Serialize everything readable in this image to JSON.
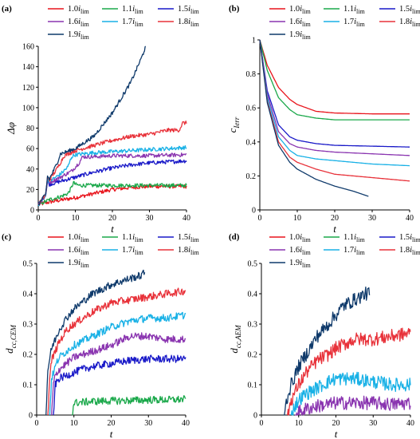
{
  "colors": {
    "s10": "#e8141c",
    "s11": "#1aa84a",
    "s15": "#1919c8",
    "s16": "#8a35b0",
    "s17": "#19b1e6",
    "s18": "#e8323a",
    "s19": "#0f3a6b"
  },
  "chart_data": [
    {
      "panel_label": "(a)",
      "type": "line",
      "xlabel": "t",
      "ylabel": "Δφ",
      "xlim": [
        0,
        40
      ],
      "ylim": [
        0,
        160
      ],
      "xticks": [
        0,
        10,
        20,
        30,
        40
      ],
      "yticks": [
        0,
        20,
        40,
        60,
        80,
        100,
        120,
        140,
        160
      ],
      "legend": [
        "1.0i_lim",
        "1.1i_lim",
        "1.5i_lim",
        "1.6i_lim",
        "1.7i_lim",
        "1.8i_lim",
        "1.9i_lim"
      ],
      "grid": false,
      "series": [
        {
          "name": "1.0i_lim",
          "color_key": "s10",
          "x": [
            0,
            2,
            5,
            10,
            15,
            20,
            25,
            30,
            35,
            40
          ],
          "y": [
            5,
            7,
            9,
            12,
            16,
            20,
            22,
            23,
            23,
            23
          ]
        },
        {
          "name": "1.1i_lim",
          "color_key": "s11",
          "x": [
            0,
            3,
            6,
            8,
            9,
            9.5,
            10,
            11,
            14,
            20,
            30,
            40
          ],
          "y": [
            5,
            10,
            13,
            16,
            22,
            27,
            25,
            24,
            24,
            24,
            24,
            24
          ]
        },
        {
          "name": "1.5i_lim",
          "color_key": "s15",
          "x": [
            0,
            1,
            2,
            2.5,
            3,
            5,
            10,
            15,
            20,
            25,
            30,
            35,
            40
          ],
          "y": [
            5,
            10,
            15,
            28,
            25,
            27,
            32,
            37,
            41,
            44,
            46,
            47,
            48
          ]
        },
        {
          "name": "1.6i_lim",
          "color_key": "s16",
          "x": [
            0,
            1,
            2,
            2.5,
            3,
            6,
            9,
            11,
            12,
            15,
            20,
            30,
            40
          ],
          "y": [
            5,
            10,
            15,
            30,
            27,
            32,
            38,
            46,
            52,
            52,
            53,
            53,
            54
          ]
        },
        {
          "name": "1.7i_lim",
          "color_key": "s17",
          "x": [
            0,
            1,
            2,
            2.5,
            3,
            6,
            8,
            9,
            10,
            15,
            20,
            30,
            40
          ],
          "y": [
            5,
            10,
            15,
            31,
            28,
            35,
            42,
            52,
            54,
            56,
            57,
            59,
            61
          ]
        },
        {
          "name": "1.8i_lim",
          "color_key": "s18",
          "x": [
            0,
            1,
            2,
            2.5,
            3,
            5,
            7,
            10,
            15,
            20,
            25,
            30,
            35,
            38,
            39,
            40
          ],
          "y": [
            5,
            10,
            15,
            32,
            29,
            40,
            53,
            58,
            63,
            68,
            72,
            74,
            78,
            78,
            85,
            85
          ]
        },
        {
          "name": "1.9i_lim",
          "color_key": "s19",
          "x": [
            0,
            1,
            2,
            2.5,
            3,
            5,
            6,
            7,
            10,
            15,
            20,
            25,
            28,
            29
          ],
          "y": [
            5,
            10,
            15,
            33,
            30,
            45,
            55,
            56,
            60,
            72,
            95,
            125,
            150,
            160
          ]
        }
      ]
    },
    {
      "panel_label": "(b)",
      "type": "line",
      "xlabel": "t",
      "ylabel": "c_Ierr",
      "xlim": [
        0,
        40
      ],
      "ylim": [
        0,
        1
      ],
      "xticks": [
        0,
        10,
        20,
        30,
        40
      ],
      "yticks": [
        0,
        0.2,
        0.4,
        0.6,
        0.8,
        1
      ],
      "legend": [
        "1.0i_lim",
        "1.1i_lim",
        "1.5i_lim",
        "1.6i_lim",
        "1.7i_lim",
        "1.8i_lim",
        "1.9i_lim"
      ],
      "grid": false,
      "series": [
        {
          "name": "1.0i_lim",
          "color_key": "s10",
          "x": [
            0,
            2,
            5,
            8,
            10,
            15,
            20,
            30,
            40
          ],
          "y": [
            1,
            0.85,
            0.72,
            0.65,
            0.62,
            0.58,
            0.57,
            0.565,
            0.565
          ]
        },
        {
          "name": "1.1i_lim",
          "color_key": "s11",
          "x": [
            0,
            2,
            5,
            8,
            10,
            15,
            20,
            30,
            40
          ],
          "y": [
            1,
            0.82,
            0.66,
            0.59,
            0.56,
            0.54,
            0.53,
            0.53,
            0.53
          ]
        },
        {
          "name": "1.5i_lim",
          "color_key": "s15",
          "x": [
            0,
            2,
            5,
            8,
            10,
            15,
            20,
            30,
            40
          ],
          "y": [
            1,
            0.7,
            0.5,
            0.43,
            0.41,
            0.39,
            0.38,
            0.375,
            0.37
          ]
        },
        {
          "name": "1.6i_lim",
          "color_key": "s16",
          "x": [
            0,
            2,
            5,
            8,
            10,
            15,
            20,
            30,
            40
          ],
          "y": [
            1,
            0.68,
            0.46,
            0.39,
            0.37,
            0.35,
            0.34,
            0.33,
            0.32
          ]
        },
        {
          "name": "1.7i_lim",
          "color_key": "s17",
          "x": [
            0,
            2,
            5,
            8,
            10,
            15,
            20,
            30,
            40
          ],
          "y": [
            1,
            0.66,
            0.43,
            0.35,
            0.32,
            0.3,
            0.29,
            0.27,
            0.26
          ]
        },
        {
          "name": "1.8i_lim",
          "color_key": "s18",
          "x": [
            0,
            2,
            5,
            8,
            10,
            15,
            20,
            30,
            40
          ],
          "y": [
            1,
            0.64,
            0.4,
            0.31,
            0.28,
            0.24,
            0.21,
            0.19,
            0.17
          ]
        },
        {
          "name": "1.9i_lim",
          "color_key": "s19",
          "x": [
            0,
            2,
            5,
            8,
            10,
            15,
            20,
            25,
            29
          ],
          "y": [
            1,
            0.63,
            0.38,
            0.28,
            0.24,
            0.18,
            0.14,
            0.11,
            0.08
          ]
        }
      ]
    },
    {
      "panel_label": "(c)",
      "type": "line",
      "xlabel": "t",
      "ylabel": "d_cc,CEM",
      "xlim": [
        0,
        40
      ],
      "ylim": [
        0,
        0.5
      ],
      "xticks": [
        0,
        10,
        20,
        30,
        40
      ],
      "yticks": [
        0,
        0.1,
        0.2,
        0.3,
        0.4,
        0.5
      ],
      "legend": [
        "1.0i_lim",
        "1.1i_lim",
        "1.5i_lim",
        "1.6i_lim",
        "1.7i_lim",
        "1.8i_lim",
        "1.9i_lim"
      ],
      "grid": false,
      "series": [
        {
          "name": "1.0i_lim",
          "color_key": "s10",
          "x": [],
          "y": []
        },
        {
          "name": "1.1i_lim",
          "color_key": "s11",
          "x": [
            9.5,
            10,
            12,
            15,
            20,
            25,
            30,
            35,
            40
          ],
          "y": [
            0,
            0.04,
            0.042,
            0.045,
            0.047,
            0.048,
            0.05,
            0.05,
            0.052
          ]
        },
        {
          "name": "1.5i_lim",
          "color_key": "s15",
          "x": [
            4.5,
            5,
            6,
            8,
            10,
            12,
            15,
            20,
            25,
            30,
            35,
            40
          ],
          "y": [
            0,
            0.1,
            0.12,
            0.13,
            0.14,
            0.15,
            0.16,
            0.17,
            0.18,
            0.185,
            0.185,
            0.185
          ]
        },
        {
          "name": "1.6i_lim",
          "color_key": "s16",
          "x": [
            4,
            4.5,
            5,
            6,
            8,
            10,
            15,
            20,
            25,
            30,
            35,
            40
          ],
          "y": [
            0,
            0.1,
            0.13,
            0.15,
            0.17,
            0.19,
            0.21,
            0.23,
            0.26,
            0.26,
            0.25,
            0.25
          ]
        },
        {
          "name": "1.7i_lim",
          "color_key": "s17",
          "x": [
            3.5,
            4,
            5,
            6,
            8,
            10,
            15,
            20,
            25,
            30,
            35,
            40
          ],
          "y": [
            0,
            0.12,
            0.16,
            0.19,
            0.21,
            0.23,
            0.26,
            0.29,
            0.31,
            0.32,
            0.32,
            0.33
          ]
        },
        {
          "name": "1.8i_lim",
          "color_key": "s18",
          "x": [
            3,
            3.5,
            4,
            6,
            8,
            10,
            15,
            20,
            25,
            30,
            35,
            40
          ],
          "y": [
            0,
            0.12,
            0.18,
            0.24,
            0.28,
            0.3,
            0.34,
            0.37,
            0.38,
            0.39,
            0.4,
            0.41
          ]
        },
        {
          "name": "1.9i_lim",
          "color_key": "s19",
          "x": [
            2.5,
            3,
            4,
            6,
            8,
            10,
            15,
            20,
            25,
            28,
            29
          ],
          "y": [
            0,
            0.15,
            0.22,
            0.28,
            0.32,
            0.35,
            0.4,
            0.43,
            0.45,
            0.46,
            0.47
          ]
        }
      ]
    },
    {
      "panel_label": "(d)",
      "type": "line",
      "xlabel": "t",
      "ylabel": "d_cc,AEM",
      "xlim": [
        0,
        40
      ],
      "ylim": [
        0,
        0.5
      ],
      "xticks": [
        0,
        10,
        20,
        30,
        40
      ],
      "yticks": [
        0,
        0.1,
        0.2,
        0.3,
        0.4,
        0.5
      ],
      "legend": [
        "1.0i_lim",
        "1.1i_lim",
        "1.5i_lim",
        "1.6i_lim",
        "1.7i_lim",
        "1.8i_lim",
        "1.9i_lim"
      ],
      "grid": false,
      "series": [
        {
          "name": "1.0i_lim",
          "color_key": "s10",
          "x": [],
          "y": []
        },
        {
          "name": "1.1i_lim",
          "color_key": "s11",
          "x": [],
          "y": []
        },
        {
          "name": "1.5i_lim",
          "color_key": "s15",
          "x": [],
          "y": []
        },
        {
          "name": "1.6i_lim",
          "color_key": "s16",
          "x": [
            9,
            10,
            12,
            15,
            18,
            20,
            25,
            30,
            35,
            40
          ],
          "y": [
            0,
            0.01,
            0.02,
            0.03,
            0.035,
            0.04,
            0.04,
            0.04,
            0.035,
            0.04
          ]
        },
        {
          "name": "1.7i_lim",
          "color_key": "s17",
          "x": [
            8,
            9,
            10,
            12,
            15,
            18,
            20,
            25,
            30,
            35,
            40
          ],
          "y": [
            0,
            0.03,
            0.05,
            0.07,
            0.09,
            0.11,
            0.12,
            0.12,
            0.11,
            0.1,
            0.1
          ]
        },
        {
          "name": "1.8i_lim",
          "color_key": "s18",
          "x": [
            7,
            8,
            10,
            12,
            15,
            18,
            20,
            25,
            30,
            35,
            40
          ],
          "y": [
            0,
            0.05,
            0.1,
            0.14,
            0.18,
            0.2,
            0.22,
            0.25,
            0.25,
            0.26,
            0.27
          ]
        },
        {
          "name": "1.9i_lim",
          "color_key": "s19",
          "x": [
            6,
            7,
            8,
            10,
            12,
            15,
            18,
            20,
            22,
            25,
            28,
            29
          ],
          "y": [
            0,
            0.06,
            0.1,
            0.16,
            0.2,
            0.26,
            0.3,
            0.33,
            0.36,
            0.38,
            0.4,
            0.4
          ]
        }
      ]
    }
  ]
}
